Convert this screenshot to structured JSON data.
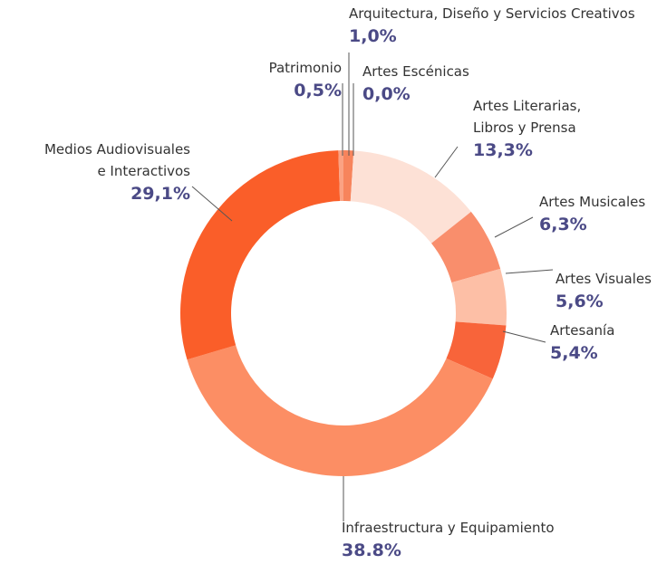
{
  "chart_data": {
    "type": "donut",
    "categories": [
      "Arquitectura, Diseño y Servicios Creativos",
      "Artes Escénicas",
      "Artes Literarias,\nLibros y Prensa",
      "Artes Musicales",
      "Artes Visuales",
      "Artesanía",
      "Infraestructura y Equipamiento",
      "Medios Audiovisuales\ne Interactivos",
      "Patrimonio"
    ],
    "values": [
      1.0,
      0.0,
      13.3,
      6.3,
      5.6,
      5.4,
      38.8,
      29.1,
      0.5
    ],
    "value_labels": [
      "1,0%",
      "0,0%",
      "13,3%",
      "6,3%",
      "5,6%",
      "5,4%",
      "38.8%",
      "29,1%",
      "0,5%"
    ],
    "colors": [
      "#f7845c",
      "#f47a50",
      "#fde1d6",
      "#f98e6c",
      "#fdbfa6",
      "#f8643a",
      "#fc8e64",
      "#fa5e29",
      "#fba283"
    ]
  }
}
